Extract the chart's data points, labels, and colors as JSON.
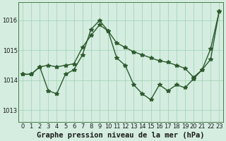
{
  "title": "Graphe pression niveau de la mer (hPa)",
  "background_color": "#d4ede0",
  "line_color1": "#2d5a2d",
  "line_color2": "#2d5a2d",
  "x_ticks": [
    0,
    1,
    2,
    3,
    4,
    5,
    6,
    7,
    8,
    9,
    10,
    11,
    12,
    13,
    14,
    15,
    16,
    17,
    18,
    19,
    20,
    21,
    22,
    23
  ],
  "y_ticks": [
    1013,
    1014,
    1015,
    1016
  ],
  "ylim": [
    1012.6,
    1016.6
  ],
  "xlim": [
    -0.5,
    23.5
  ],
  "series_jagged": {
    "x": [
      0,
      1,
      2,
      3,
      4,
      5,
      6,
      7,
      8,
      9,
      10,
      11,
      12,
      13,
      14,
      15,
      16,
      17,
      18,
      19,
      20,
      21,
      22,
      23
    ],
    "y": [
      1014.2,
      1014.2,
      1014.45,
      1013.65,
      1013.55,
      1014.2,
      1014.35,
      1014.85,
      1015.7,
      1016.0,
      1015.65,
      1014.75,
      1014.5,
      1013.85,
      1013.55,
      1013.35,
      1013.85,
      1013.65,
      1013.85,
      1013.75,
      1014.05,
      1014.35,
      1015.05,
      1016.3
    ]
  },
  "series_smooth": {
    "x": [
      0,
      1,
      2,
      3,
      4,
      5,
      6,
      7,
      8,
      9,
      10,
      11,
      12,
      13,
      14,
      15,
      16,
      17,
      18,
      19,
      20,
      21,
      22,
      23
    ],
    "y": [
      1014.2,
      1014.2,
      1014.45,
      1014.5,
      1014.45,
      1014.5,
      1014.55,
      1015.1,
      1015.5,
      1015.85,
      1015.65,
      1015.25,
      1015.1,
      1014.95,
      1014.85,
      1014.75,
      1014.65,
      1014.6,
      1014.5,
      1014.4,
      1014.1,
      1014.35,
      1014.7,
      1016.3
    ]
  },
  "marker": "*",
  "markersize": 4,
  "linewidth": 1.0,
  "title_fontsize": 7.5,
  "tick_fontsize": 6,
  "grid_color": "#9ecfb2",
  "spine_color": "#4a7a4a"
}
